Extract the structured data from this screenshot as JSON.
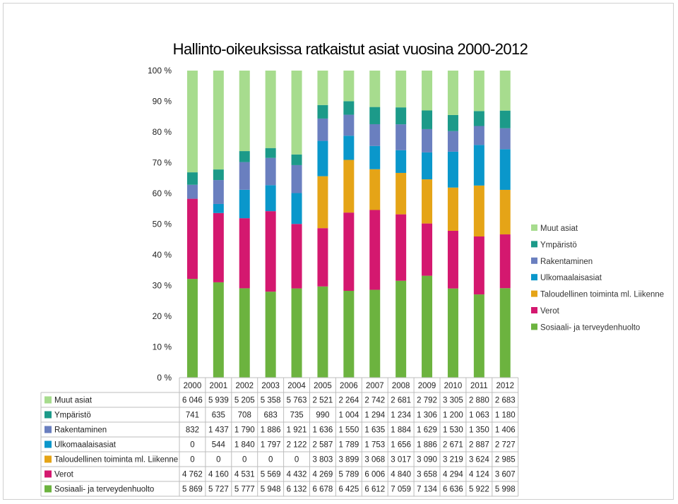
{
  "chart_data": {
    "type": "bar",
    "stacked": "percent",
    "title": "Hallinto-oikeuksissa ratkaistut asiat vuosina 2000-2012",
    "yticks": [
      "0 %",
      "10 %",
      "20 %",
      "30 %",
      "40 %",
      "50 %",
      "60 %",
      "70 %",
      "80 %",
      "90 %",
      "100 %"
    ],
    "ylim": [
      0,
      100
    ],
    "grid": false,
    "legend_position": "right",
    "categories": [
      "2000",
      "2001",
      "2002",
      "2003",
      "2004",
      "2005",
      "2006",
      "2007",
      "2008",
      "2009",
      "2010",
      "2011",
      "2012"
    ],
    "series": [
      {
        "name": "Sosiaali- ja terveydenhuolto",
        "color": "#6cb33f",
        "values": [
          5869,
          5727,
          5777,
          5948,
          6132,
          6678,
          6425,
          6612,
          7059,
          7134,
          6636,
          5922,
          5998
        ],
        "labels": [
          "5 869",
          "5 727",
          "5 777",
          "5 948",
          "6 132",
          "6 678",
          "6 425",
          "6 612",
          "7 059",
          "7 134",
          "6 636",
          "5 922",
          "5 998"
        ]
      },
      {
        "name": "Verot",
        "color": "#d4186f",
        "values": [
          4762,
          4160,
          4531,
          5569,
          4432,
          4269,
          5789,
          6006,
          4840,
          3658,
          4294,
          4124,
          3607
        ],
        "labels": [
          "4 762",
          "4 160",
          "4 531",
          "5 569",
          "4 432",
          "4 269",
          "5 789",
          "6 006",
          "4 840",
          "3 658",
          "4 294",
          "4 124",
          "3 607"
        ]
      },
      {
        "name": "Taloudellinen toiminta ml. Liikenne",
        "color": "#e5a417",
        "values": [
          0,
          0,
          0,
          0,
          0,
          3803,
          3899,
          3068,
          3017,
          3090,
          3219,
          3624,
          2985
        ],
        "labels": [
          "0",
          "0",
          "0",
          "0",
          "0",
          "3 803",
          "3 899",
          "3 068",
          "3 017",
          "3 090",
          "3 219",
          "3 624",
          "2 985"
        ]
      },
      {
        "name": "Ulkomaalaisasiat",
        "color": "#0a97cb",
        "values": [
          0,
          544,
          1840,
          1797,
          2122,
          2587,
          1789,
          1753,
          1656,
          1886,
          2671,
          2887,
          2727
        ],
        "labels": [
          "0",
          "544",
          "1 840",
          "1 797",
          "2 122",
          "2 587",
          "1 789",
          "1 753",
          "1 656",
          "1 886",
          "2 671",
          "2 887",
          "2 727"
        ]
      },
      {
        "name": "Rakentaminen",
        "color": "#6a7fbf",
        "values": [
          832,
          1437,
          1790,
          1886,
          1921,
          1636,
          1550,
          1635,
          1884,
          1629,
          1530,
          1350,
          1406
        ],
        "labels": [
          "832",
          "1 437",
          "1 790",
          "1 886",
          "1 921",
          "1 636",
          "1 550",
          "1 635",
          "1 884",
          "1 629",
          "1 530",
          "1 350",
          "1 406"
        ]
      },
      {
        "name": "Ympäristö",
        "color": "#1c9a89",
        "values": [
          741,
          635,
          708,
          683,
          735,
          990,
          1004,
          1294,
          1234,
          1306,
          1200,
          1063,
          1180
        ],
        "labels": [
          "741",
          "635",
          "708",
          "683",
          "735",
          "990",
          "1 004",
          "1 294",
          "1 234",
          "1 306",
          "1 200",
          "1 063",
          "1 180"
        ]
      },
      {
        "name": "Muut asiat",
        "color": "#a7dc8e",
        "values": [
          6046,
          5939,
          5205,
          5358,
          5763,
          2521,
          2264,
          2742,
          2681,
          2792,
          3305,
          2880,
          2683
        ],
        "labels": [
          "6 046",
          "5 939",
          "5 205",
          "5 358",
          "5 763",
          "2 521",
          "2 264",
          "2 742",
          "2 681",
          "2 792",
          "3 305",
          "2 880",
          "2 683"
        ]
      }
    ]
  }
}
